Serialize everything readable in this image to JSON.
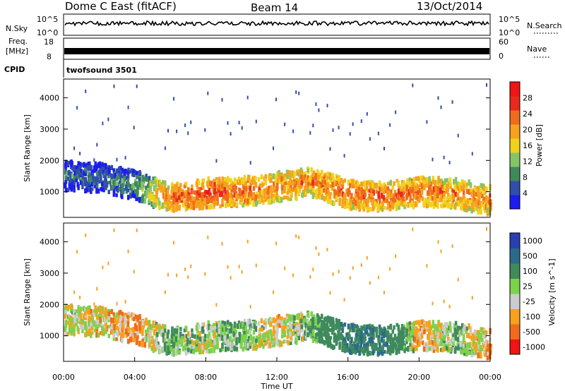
{
  "header": {
    "title": "Dome C East (fitACF)",
    "beam": "Beam 14",
    "date": "13/Oct/2014"
  },
  "top_panels": {
    "nsky_label": "N.Sky",
    "nsearch_label": "N.Search",
    "noise_left_ticks": [
      "10^5",
      "10^0"
    ],
    "noise_right_ticks": [
      "10^5",
      "10^0"
    ],
    "freq_label_top": "Freq.",
    "freq_label_unit": "[MHz]",
    "freq_left_ticks": [
      "18",
      "8"
    ],
    "freq_right_ticks": [
      "60",
      "0"
    ],
    "nave_label": "Nave",
    "cpid_label": "CPID",
    "cpid_value": "twofsound 3501"
  },
  "colors": {
    "power_scale": [
      "#1c1cf0",
      "#2f4fa8",
      "#3f8a5c",
      "#86c466",
      "#f0d21c",
      "#f5a21c",
      "#f06b1c",
      "#e82a1c",
      "#f01414"
    ],
    "velocity_scale": [
      "#f01414",
      "#f06b1c",
      "#f5a21c",
      "#cccccc",
      "#7cd24a",
      "#3f8a5c",
      "#2c6a8a",
      "#2a3fb0"
    ]
  },
  "chart_data": [
    {
      "type": "heatmap",
      "title": "",
      "xlabel": "",
      "ylabel": "Slant Range [km]",
      "xlim": [
        "00:00",
        "24:00"
      ],
      "ylim": [
        180,
        4600
      ],
      "y_ticks": [
        "1000",
        "2000",
        "3000",
        "4000"
      ],
      "colorbar_label": "Power [dB]",
      "colorbar_ticks": [
        "4",
        "8",
        "12",
        "16",
        "20",
        "24",
        "28"
      ],
      "colorbar_range": [
        0,
        32
      ],
      "series": [
        {
          "name": "Power",
          "x_hours": [
            0,
            2,
            4,
            6,
            8,
            10,
            12,
            14,
            16,
            18,
            20,
            22,
            24
          ],
          "peak_range_km": [
            1500,
            1450,
            1200,
            800,
            950,
            1000,
            1150,
            1300,
            900,
            850,
            1000,
            950,
            700
          ],
          "peak_power_db": [
            12,
            12,
            14,
            28,
            30,
            28,
            26,
            26,
            28,
            28,
            28,
            26,
            26
          ]
        }
      ]
    },
    {
      "type": "heatmap",
      "title": "",
      "xlabel": "Time UT",
      "ylabel": "Slant Range [km]",
      "xlim": [
        "00:00",
        "24:00"
      ],
      "ylim": [
        180,
        4600
      ],
      "x_ticks": [
        "00:00",
        "04:00",
        "08:00",
        "12:00",
        "16:00",
        "20:00",
        "00:00"
      ],
      "y_ticks": [
        "1000",
        "2000",
        "3000",
        "4000"
      ],
      "colorbar_label": "Velocity [m s^-1]",
      "colorbar_ticks": [
        "1000",
        "500",
        "100",
        "25",
        "-25",
        "-100",
        "-500",
        "-1000"
      ],
      "series": [
        {
          "name": "Velocity",
          "x_hours": [
            0,
            2,
            4,
            6,
            8,
            10,
            12,
            14,
            16,
            18,
            20,
            22,
            24
          ],
          "peak_range_km": [
            1500,
            1450,
            1200,
            800,
            950,
            1000,
            1150,
            1300,
            900,
            850,
            1000,
            950,
            700
          ],
          "velocity_ms": [
            25,
            -25,
            -100,
            100,
            25,
            100,
            -25,
            100,
            500,
            500,
            -100,
            100,
            -100
          ]
        }
      ]
    }
  ]
}
